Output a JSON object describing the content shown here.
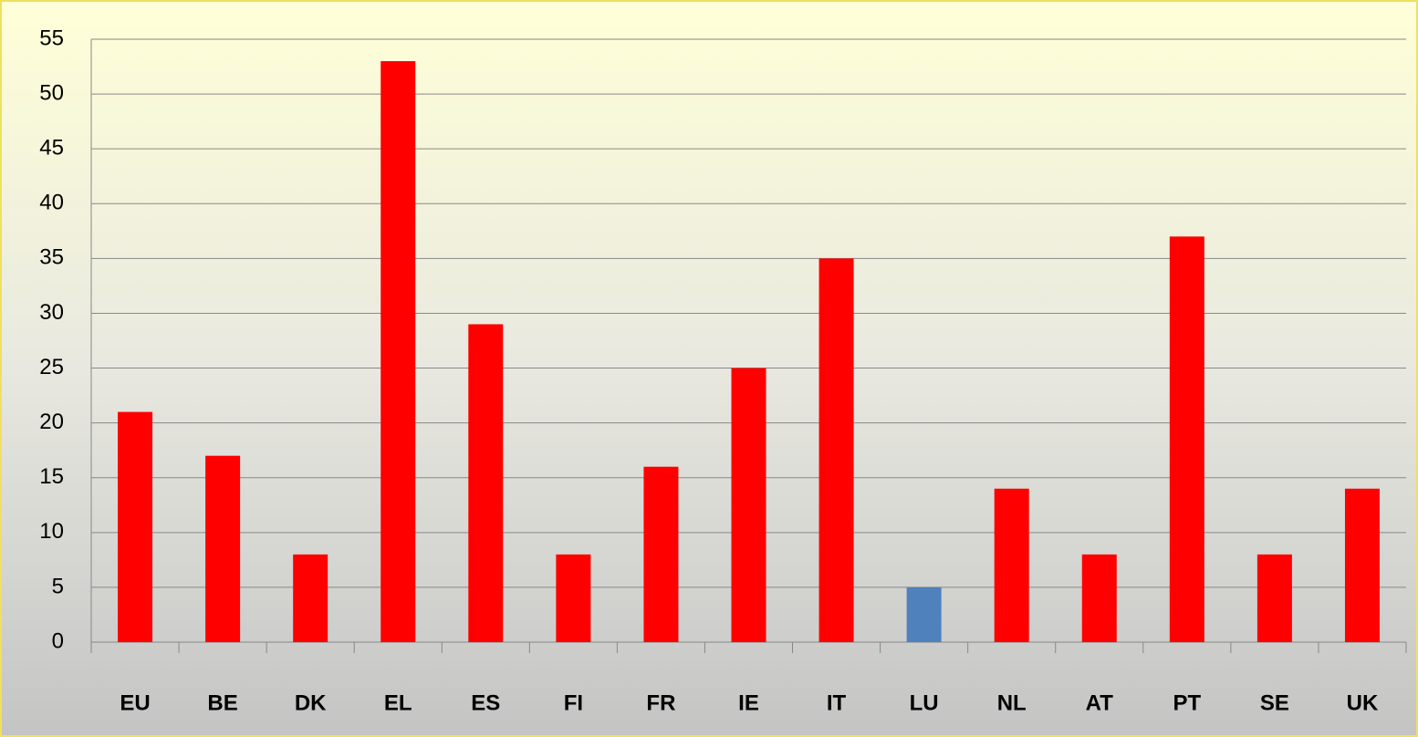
{
  "chart_data": {
    "type": "bar",
    "categories": [
      "EU",
      "BE",
      "DK",
      "EL",
      "ES",
      "FI",
      "FR",
      "IE",
      "IT",
      "LU",
      "NL",
      "AT",
      "PT",
      "SE",
      "UK"
    ],
    "values": [
      21,
      17,
      8,
      53,
      29,
      8,
      16,
      25,
      35,
      5,
      14,
      8,
      37,
      8,
      14
    ],
    "colors": [
      "#ff0000",
      "#ff0000",
      "#ff0000",
      "#ff0000",
      "#ff0000",
      "#ff0000",
      "#ff0000",
      "#ff0000",
      "#ff0000",
      "#4f81bd",
      "#ff0000",
      "#ff0000",
      "#ff0000",
      "#ff0000",
      "#ff0000"
    ],
    "ylim": [
      0,
      55
    ],
    "yticks": [
      0,
      5,
      10,
      15,
      20,
      25,
      30,
      35,
      40,
      45,
      50,
      55
    ],
    "grid": true
  }
}
